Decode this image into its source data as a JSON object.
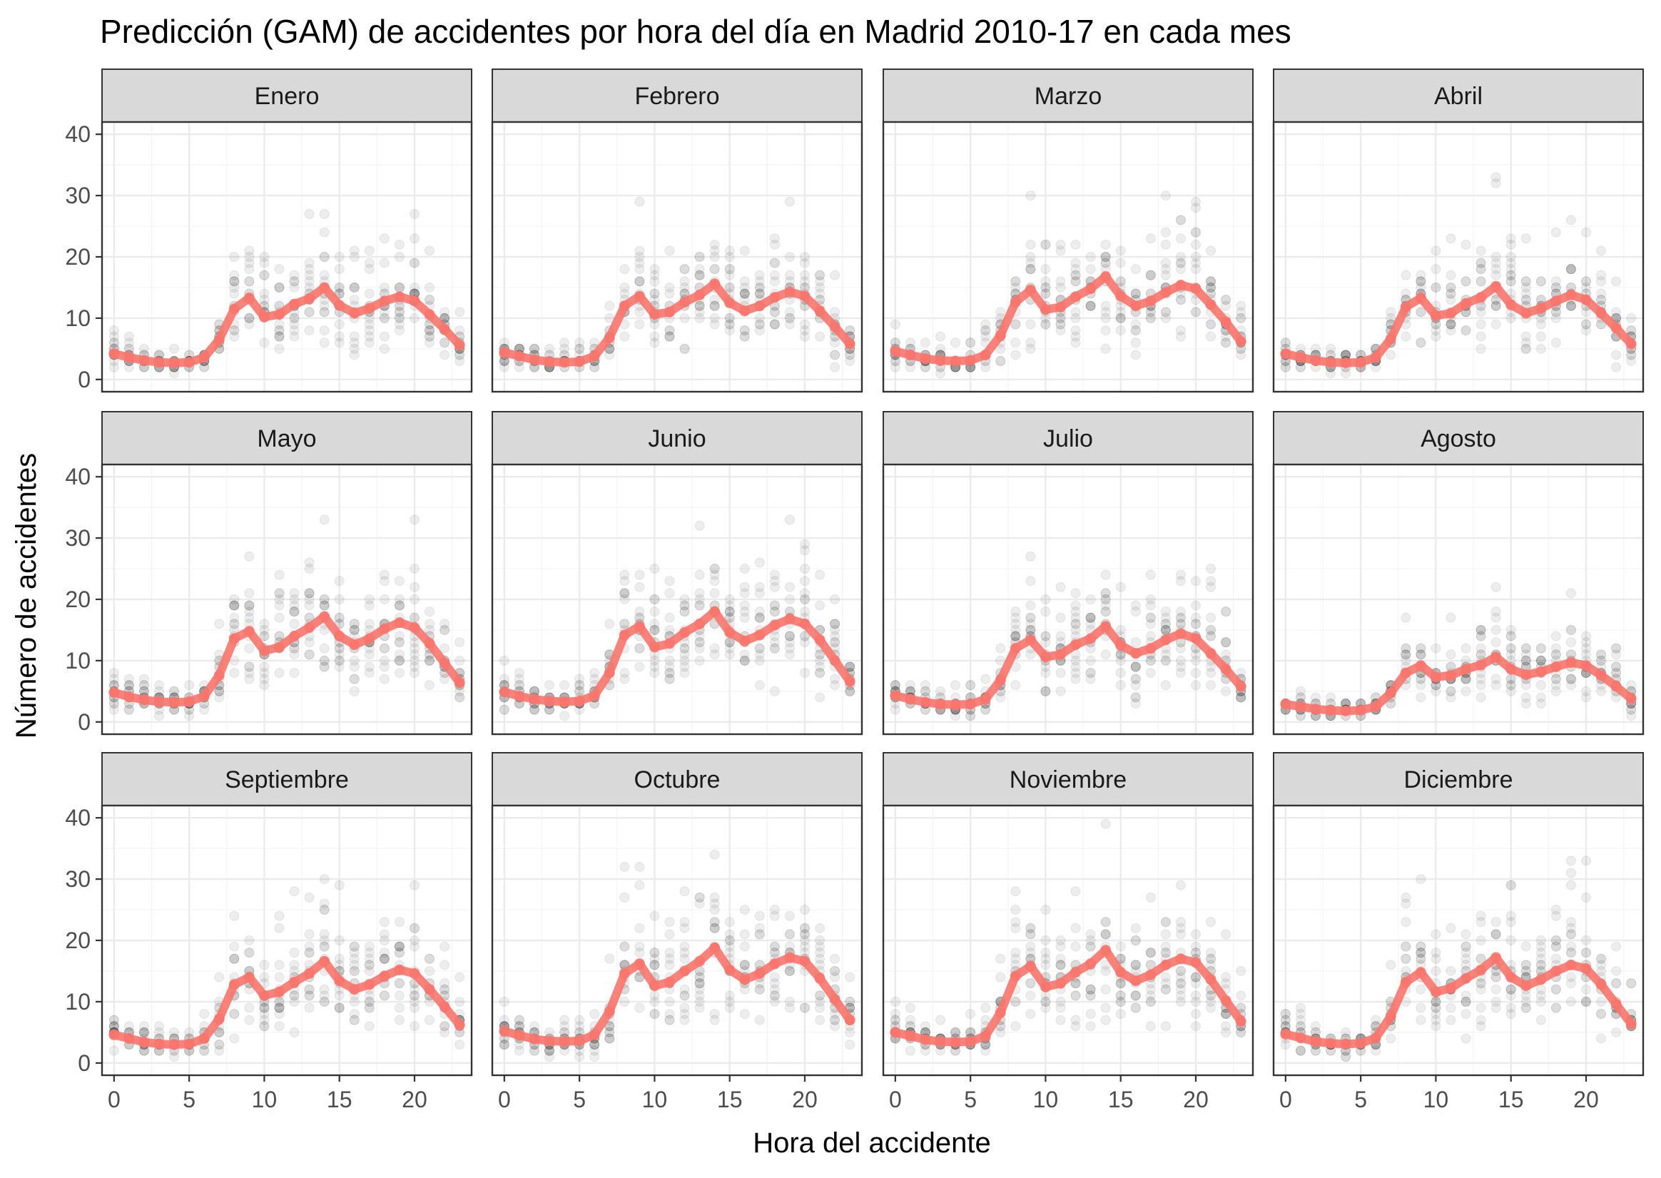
{
  "chart_data": {
    "type": "scatter",
    "title": "Predicción (GAM) de accidentes por hora del día en Madrid 2010-17 en cada mes",
    "xlabel": "Hora del accidente",
    "ylabel": "Número de accidentes",
    "xlim": [
      -0.8,
      23.8
    ],
    "ylim": [
      -2,
      42
    ],
    "x_ticks": [
      0,
      5,
      10,
      15,
      20
    ],
    "y_ticks": [
      0,
      10,
      20,
      30,
      40
    ],
    "grid": true,
    "hours": [
      0,
      1,
      2,
      3,
      4,
      5,
      6,
      7,
      8,
      9,
      10,
      11,
      12,
      13,
      14,
      15,
      16,
      17,
      18,
      19,
      20,
      21,
      22,
      23
    ],
    "points_note": "",
    "colors": {
      "prediction": "#f8766d",
      "points": "#000000",
      "strip_fill": "#d9d9d9",
      "grid_major": "#ebebeb",
      "panel_border": "#333333"
    },
    "panels": [
      {
        "month": "Enero",
        "prediction": [
          4.2,
          3.6,
          3.1,
          2.8,
          2.7,
          2.8,
          3.6,
          6.5,
          11.5,
          13.3,
          10.2,
          10.6,
          12.3,
          13.2,
          15.0,
          12.1,
          10.8,
          11.6,
          12.8,
          13.5,
          12.8,
          10.6,
          8.2,
          5.6
        ]
      },
      {
        "month": "Febrero",
        "prediction": [
          4.4,
          3.8,
          3.2,
          2.9,
          2.8,
          2.9,
          3.8,
          6.8,
          12.0,
          13.6,
          10.6,
          11.0,
          12.6,
          13.8,
          15.6,
          12.5,
          11.2,
          12.0,
          13.4,
          14.3,
          13.6,
          11.2,
          8.6,
          5.8
        ]
      },
      {
        "month": "Marzo",
        "prediction": [
          4.6,
          4.0,
          3.4,
          3.1,
          3.0,
          3.1,
          4.0,
          7.2,
          12.6,
          14.6,
          11.4,
          11.8,
          13.5,
          14.8,
          16.8,
          13.6,
          12.0,
          12.8,
          14.2,
          15.4,
          14.8,
          12.2,
          9.4,
          6.2
        ]
      },
      {
        "month": "Abril",
        "prediction": [
          4.2,
          3.6,
          3.1,
          2.8,
          2.7,
          2.8,
          3.6,
          6.6,
          11.8,
          13.3,
          10.4,
          10.8,
          12.4,
          13.4,
          15.2,
          12.2,
          10.8,
          11.6,
          12.8,
          13.8,
          13.0,
          10.8,
          8.4,
          5.8
        ]
      },
      {
        "month": "Mayo",
        "prediction": [
          4.8,
          4.1,
          3.6,
          3.3,
          3.2,
          3.3,
          4.2,
          7.6,
          13.6,
          14.8,
          11.6,
          12.2,
          14.0,
          15.4,
          17.2,
          14.0,
          12.6,
          13.6,
          15.2,
          16.2,
          15.4,
          12.8,
          9.6,
          6.4
        ]
      },
      {
        "month": "Junio",
        "prediction": [
          4.9,
          4.2,
          3.7,
          3.4,
          3.3,
          3.4,
          4.3,
          8.0,
          14.2,
          15.6,
          12.2,
          12.8,
          14.6,
          16.0,
          18.0,
          14.6,
          13.2,
          14.2,
          15.8,
          16.8,
          16.0,
          13.4,
          10.0,
          6.6
        ]
      },
      {
        "month": "Julio",
        "prediction": [
          4.3,
          3.7,
          3.2,
          2.9,
          2.8,
          2.9,
          3.7,
          6.8,
          12.0,
          13.4,
          10.6,
          11.0,
          12.6,
          13.6,
          15.6,
          12.5,
          11.2,
          12.0,
          13.4,
          14.4,
          13.6,
          11.2,
          8.6,
          5.8
        ]
      },
      {
        "month": "Agosto",
        "prediction": [
          2.9,
          2.5,
          2.1,
          1.9,
          1.8,
          1.9,
          2.5,
          4.7,
          8.0,
          9.2,
          7.3,
          7.6,
          8.6,
          9.3,
          10.6,
          8.6,
          7.7,
          8.2,
          9.0,
          9.7,
          9.2,
          7.6,
          5.8,
          3.8
        ]
      },
      {
        "month": "Septiembre",
        "prediction": [
          4.6,
          4.0,
          3.4,
          3.1,
          3.0,
          3.1,
          4.0,
          7.2,
          12.8,
          14.0,
          11.0,
          11.6,
          13.2,
          14.6,
          16.6,
          13.4,
          12.0,
          12.8,
          14.2,
          15.2,
          14.6,
          12.0,
          9.2,
          6.2
        ]
      },
      {
        "month": "Octubre",
        "prediction": [
          5.2,
          4.5,
          3.9,
          3.6,
          3.5,
          3.6,
          4.6,
          8.4,
          14.6,
          16.2,
          12.6,
          13.2,
          15.0,
          16.6,
          18.8,
          15.2,
          13.6,
          14.6,
          16.2,
          17.2,
          16.6,
          13.8,
          10.4,
          7.0
        ]
      },
      {
        "month": "Noviembre",
        "prediction": [
          5.0,
          4.4,
          3.8,
          3.5,
          3.4,
          3.5,
          4.4,
          8.2,
          14.2,
          15.8,
          12.4,
          13.0,
          14.8,
          16.2,
          18.4,
          14.8,
          13.4,
          14.4,
          16.0,
          17.0,
          16.4,
          13.6,
          10.2,
          6.8
        ]
      },
      {
        "month": "Diciembre",
        "prediction": [
          4.7,
          4.1,
          3.5,
          3.2,
          3.1,
          3.2,
          4.1,
          7.6,
          13.2,
          14.8,
          11.6,
          12.2,
          13.8,
          15.2,
          17.2,
          14.0,
          12.6,
          13.6,
          15.0,
          16.0,
          15.4,
          12.8,
          9.6,
          6.4
        ]
      }
    ]
  }
}
